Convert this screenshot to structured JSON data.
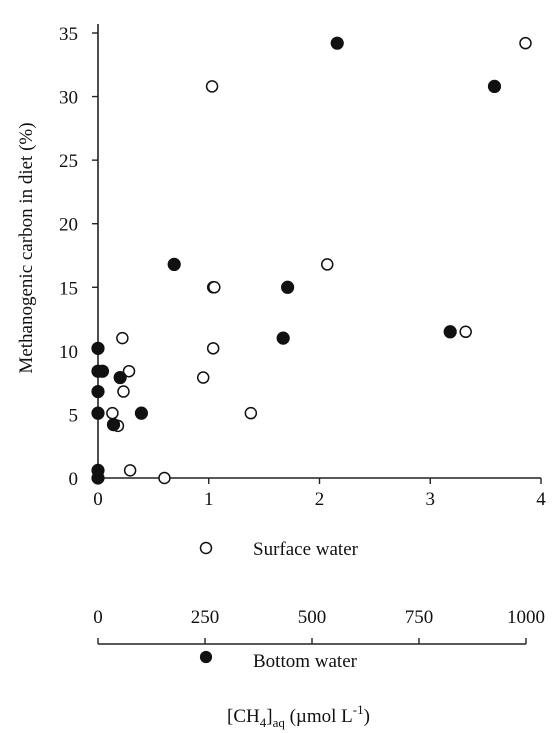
{
  "chart_data": {
    "type": "scatter",
    "ylabel": "Methanogenic carbon in diet (%)",
    "ylim": [
      0,
      35
    ],
    "yticks": [
      0,
      5,
      10,
      15,
      20,
      25,
      30,
      35
    ],
    "grid": false,
    "x_axes": [
      {
        "series": "Surface water",
        "range": [
          0,
          4
        ],
        "ticks": [
          0,
          1,
          2,
          3,
          4
        ]
      },
      {
        "series": "Bottom water",
        "range": [
          0,
          1000
        ],
        "ticks": [
          0,
          250,
          500,
          750,
          1000
        ]
      }
    ],
    "xlabel": {
      "base": "[CH",
      "sub1": "4",
      "mid": "]",
      "sub2": "aq",
      "unit": " (µmol L",
      "sup": "-1",
      "end": ")"
    },
    "series": [
      {
        "name": "Surface water",
        "marker": "open-circle",
        "x": [
          0.13,
          0.18,
          0.22,
          0.23,
          0.28,
          0.29,
          0.6,
          0.95,
          1.03,
          1.04,
          1.04,
          1.05,
          1.38,
          2.07,
          3.32,
          3.86
        ],
        "y": [
          5.1,
          4.1,
          11.0,
          6.8,
          8.4,
          0.6,
          0.0,
          7.9,
          30.8,
          15.0,
          10.2,
          15.0,
          5.1,
          16.8,
          11.5,
          34.2
        ]
      },
      {
        "name": "Bottom water",
        "marker": "filled-circle",
        "x": [
          0,
          0,
          0,
          0,
          0,
          0,
          10,
          35,
          50,
          98,
          172,
          418,
          428,
          540,
          795,
          895
        ],
        "y": [
          0.0,
          0.6,
          5.1,
          6.8,
          10.2,
          8.4,
          8.4,
          4.2,
          7.9,
          5.1,
          16.8,
          11.0,
          15.0,
          34.2,
          11.5,
          30.8
        ]
      }
    ]
  },
  "legend": {
    "surface_label": "Surface water",
    "bottom_label": "Bottom water"
  },
  "colors": {
    "ink": "#111111",
    "background": "#ffffff"
  }
}
